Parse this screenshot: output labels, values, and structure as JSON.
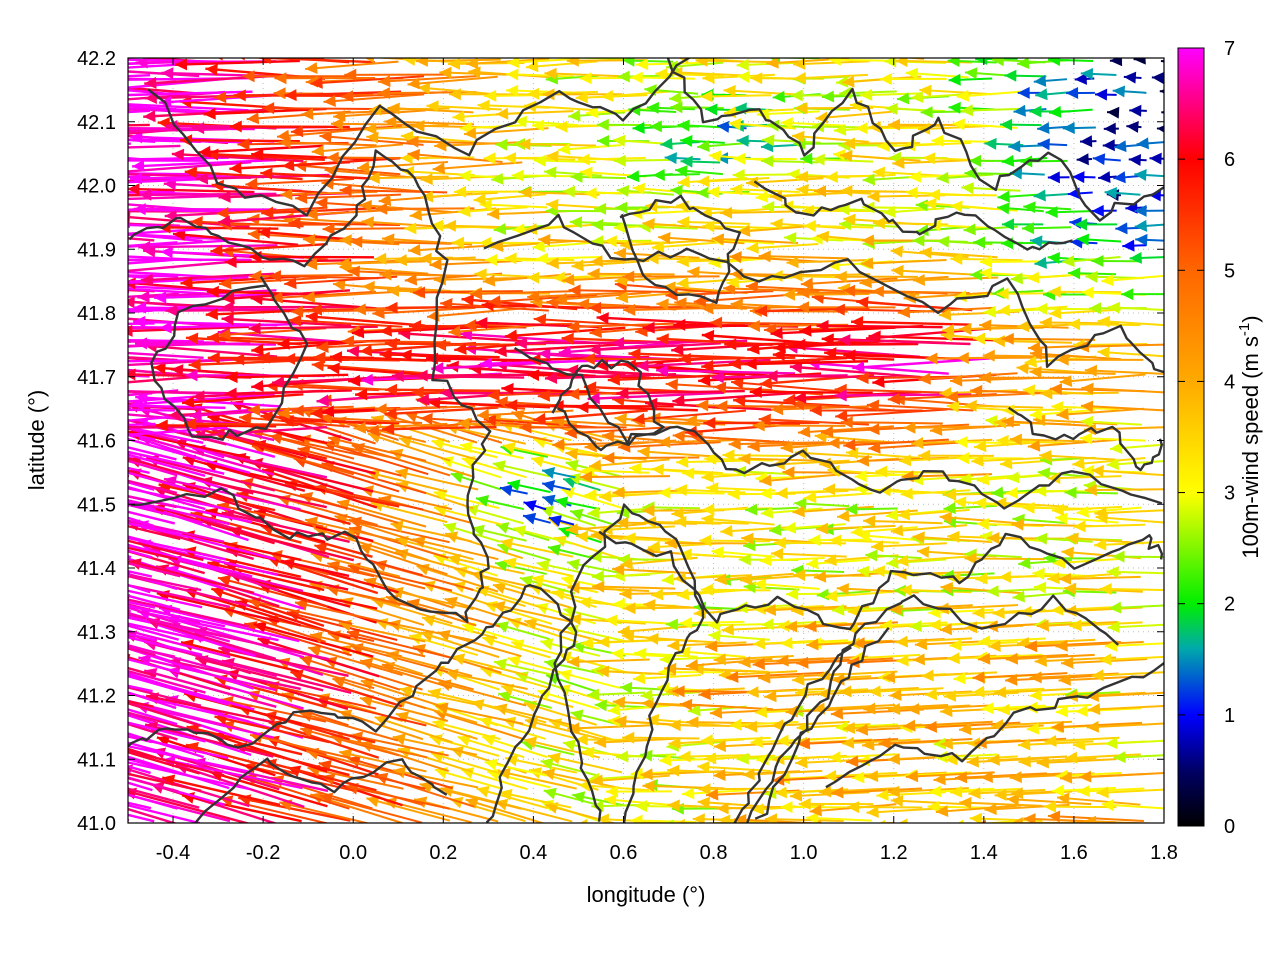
{
  "chart_data": {
    "type": "vector-field",
    "xlabel": "longitude (°)",
    "ylabel": "latitude (°)",
    "xlim": [
      -0.5,
      1.8
    ],
    "ylim": [
      41.0,
      42.2
    ],
    "xticks": [
      "-0.4",
      "-0.2",
      "0.0",
      "0.2",
      "0.4",
      "0.6",
      "0.8",
      "1.0",
      "1.2",
      "1.4",
      "1.6",
      "1.8"
    ],
    "xtick_values": [
      -0.4,
      -0.2,
      0.0,
      0.2,
      0.4,
      0.6,
      0.8,
      1.0,
      1.2,
      1.4,
      1.6,
      1.8
    ],
    "yticks": [
      "41.0",
      "41.1",
      "41.2",
      "41.3",
      "41.4",
      "41.5",
      "41.6",
      "41.7",
      "41.8",
      "41.9",
      "42.0",
      "42.1",
      "42.2"
    ],
    "ytick_values": [
      41.0,
      41.1,
      41.2,
      41.3,
      41.4,
      41.5,
      41.6,
      41.7,
      41.8,
      41.9,
      42.0,
      42.1,
      42.2
    ],
    "grid": true,
    "colorbar": {
      "label_main": "100m-wind speed (m s",
      "label_sup": "-1",
      "label_end": ")",
      "range": [
        0,
        7
      ],
      "ticks": [
        "0",
        "1",
        "2",
        "3",
        "4",
        "5",
        "6",
        "7"
      ],
      "tick_values": [
        0,
        1,
        2,
        3,
        4,
        5,
        6,
        7
      ],
      "stops": [
        {
          "value": 0,
          "color": "#000000"
        },
        {
          "value": 0.5,
          "color": "#000066"
        },
        {
          "value": 1,
          "color": "#0000ff"
        },
        {
          "value": 1.6,
          "color": "#00aaaa"
        },
        {
          "value": 2,
          "color": "#00ee00"
        },
        {
          "value": 3,
          "color": "#ffff00"
        },
        {
          "value": 4,
          "color": "#ffaa00"
        },
        {
          "value": 5,
          "color": "#ff6600"
        },
        {
          "value": 6,
          "color": "#ff0000"
        },
        {
          "value": 7,
          "color": "#ff00ff"
        }
      ]
    },
    "wind_field": {
      "direction": "easterly (arrows point west)",
      "speed_summary": [
        {
          "region": "west / southwest",
          "speed": 7
        },
        {
          "region": "central band 41.55-41.85",
          "speed": 6
        },
        {
          "region": "southeast lowlands",
          "speed": 3.5
        },
        {
          "region": "northeast corner",
          "speed": 1
        }
      ]
    },
    "contours": {
      "color": "#333333",
      "description": "terrain height contours"
    }
  }
}
